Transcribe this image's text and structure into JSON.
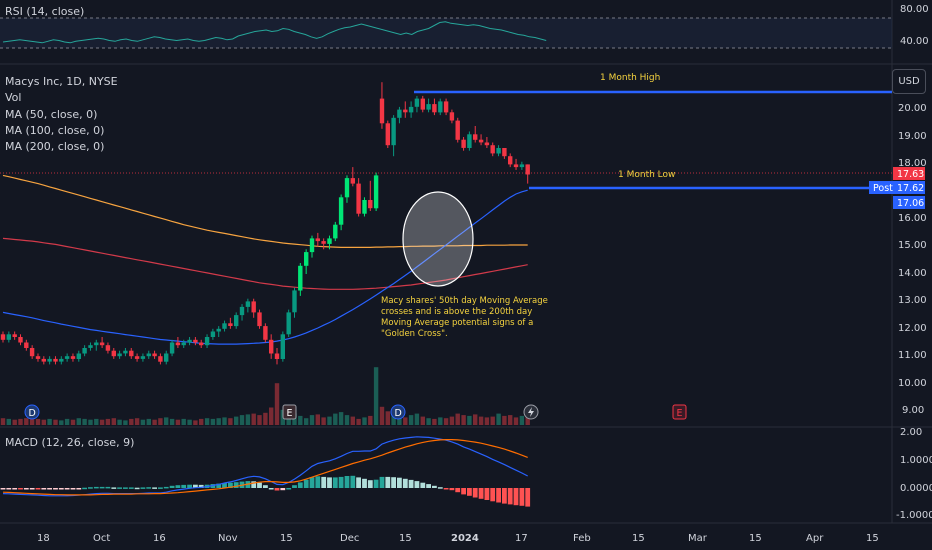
{
  "rsi": {
    "label": "RSI (14, close)",
    "ticks": [
      "80.00",
      "40.00"
    ],
    "values": [
      48,
      49,
      50,
      51,
      50,
      49,
      48,
      47,
      49,
      51,
      50,
      48,
      47,
      49,
      50,
      51,
      52,
      53,
      52,
      50,
      49,
      51,
      52,
      50,
      49,
      51,
      53,
      55,
      54,
      52,
      51,
      50,
      51,
      52,
      50,
      49,
      50,
      52,
      54,
      53,
      51,
      52,
      56,
      58,
      60,
      62,
      63,
      64,
      62,
      63,
      66,
      65,
      62,
      60,
      58,
      55,
      53,
      55,
      59,
      62,
      65,
      67,
      68,
      70,
      72,
      70,
      68,
      66,
      64,
      62,
      60,
      58,
      60,
      58,
      62,
      64,
      66,
      70,
      74,
      75,
      73,
      72,
      71,
      70,
      71,
      70,
      68,
      66,
      65,
      64,
      62,
      60,
      58,
      57,
      55,
      54,
      52,
      50
    ]
  },
  "main": {
    "legend": {
      "title": "Macys Inc, 1D, NYSE",
      "vol": "Vol",
      "ma50": "MA (50, close, 0)",
      "ma100": "MA (100, close, 0)",
      "ma200": "MA (200, close, 0)"
    },
    "usd_label": "USD",
    "price_ticks": [
      "20.00",
      "19.00",
      "18.00",
      "16.00",
      "15.00",
      "14.00",
      "13.00",
      "12.00",
      "11.00",
      "10.00",
      "9.00"
    ],
    "one_month_high_label": "1 Month High",
    "one_month_low_label": "1 Month Low",
    "annotation_lines": [
      "Macy shares' 50th day Moving Average",
      "crosses and is above the 200th day",
      "Moving Average potential signs of a",
      "\"Golden Cross\"."
    ],
    "badges": {
      "last_price": "17.63",
      "post_label": "Post",
      "post_price": "17.62",
      "ma_price": "17.06"
    },
    "event_markers": [
      "D",
      "E",
      "D",
      "E"
    ]
  },
  "macd": {
    "label": "MACD (12, 26, close, 9)",
    "ticks": [
      "2.00",
      "1.0000",
      "0.0000",
      "-1.0000"
    ]
  },
  "time_axis": [
    "18",
    "Oct",
    "16",
    "Nov",
    "15",
    "Dec",
    "15",
    "2024",
    "17",
    "Feb",
    "15",
    "Mar",
    "15",
    "Apr",
    "15"
  ],
  "colors": {
    "up": "#089981",
    "up_bright": "#00e676",
    "down": "#f23645",
    "ma50": "#2962ff",
    "ma100": "#f7a440",
    "ma200": "#d23a4a",
    "level_line": "#2962ff",
    "annotation": "#f5d33f",
    "rsi_line": "#26a69a",
    "macd_line": "#2962ff",
    "signal_line": "#ff6d00"
  },
  "chart_data": {
    "type": "candlestick",
    "title": "Macys Inc, 1D, NYSE",
    "ylim": [
      8.8,
      21.2
    ],
    "dates": [
      "2023-09-12",
      "2023-09-13",
      "2023-09-14",
      "2023-09-15",
      "2023-09-18",
      "2023-09-19",
      "2023-09-20",
      "2023-09-21",
      "2023-09-22",
      "2023-09-25",
      "2023-09-26",
      "2023-09-27",
      "2023-09-28",
      "2023-09-29",
      "2023-10-02",
      "2023-10-03",
      "2023-10-04",
      "2023-10-05",
      "2023-10-06",
      "2023-10-09",
      "2023-10-10",
      "2023-10-11",
      "2023-10-12",
      "2023-10-13",
      "2023-10-16",
      "2023-10-17",
      "2023-10-18",
      "2023-10-19",
      "2023-10-20",
      "2023-10-23",
      "2023-10-24",
      "2023-10-25",
      "2023-10-26",
      "2023-10-27",
      "2023-10-30",
      "2023-10-31",
      "2023-11-01",
      "2023-11-02",
      "2023-11-03",
      "2023-11-06",
      "2023-11-07",
      "2023-11-08",
      "2023-11-09",
      "2023-11-10",
      "2023-11-13",
      "2023-11-14",
      "2023-11-15",
      "2023-11-16",
      "2023-11-17",
      "2023-11-20",
      "2023-11-21",
      "2023-11-22",
      "2023-11-24",
      "2023-11-27",
      "2023-11-28",
      "2023-11-29",
      "2023-11-30",
      "2023-12-01",
      "2023-12-04",
      "2023-12-05",
      "2023-12-06",
      "2023-12-07",
      "2023-12-08",
      "2023-12-11",
      "2023-12-12",
      "2023-12-13",
      "2023-12-14",
      "2023-12-15",
      "2023-12-18",
      "2023-12-19",
      "2023-12-20",
      "2023-12-21",
      "2023-12-22",
      "2023-12-26",
      "2023-12-27",
      "2023-12-28",
      "2023-12-29",
      "2024-01-02",
      "2024-01-03",
      "2024-01-04",
      "2024-01-05",
      "2024-01-08",
      "2024-01-09",
      "2024-01-10",
      "2024-01-11",
      "2024-01-12",
      "2024-01-16",
      "2024-01-17",
      "2024-01-18",
      "2024-01-19",
      "2024-01-22"
    ],
    "candles": [
      [
        11.8,
        11.9,
        11.5,
        11.6
      ],
      [
        11.6,
        11.9,
        11.5,
        11.8
      ],
      [
        11.8,
        11.9,
        11.6,
        11.7
      ],
      [
        11.7,
        11.8,
        11.4,
        11.5
      ],
      [
        11.5,
        11.6,
        11.2,
        11.3
      ],
      [
        11.3,
        11.4,
        10.9,
        11.0
      ],
      [
        11.0,
        11.1,
        10.8,
        10.9
      ],
      [
        10.9,
        11.0,
        10.7,
        10.8
      ],
      [
        10.8,
        11.0,
        10.7,
        10.9
      ],
      [
        10.9,
        11.0,
        10.7,
        10.8
      ],
      [
        10.8,
        11.0,
        10.7,
        10.9
      ],
      [
        10.9,
        11.1,
        10.8,
        11.0
      ],
      [
        11.0,
        11.1,
        10.8,
        10.9
      ],
      [
        10.9,
        11.2,
        10.8,
        11.1
      ],
      [
        11.1,
        11.4,
        11.0,
        11.3
      ],
      [
        11.3,
        11.5,
        11.2,
        11.4
      ],
      [
        11.4,
        11.6,
        11.2,
        11.5
      ],
      [
        11.5,
        11.7,
        11.3,
        11.4
      ],
      [
        11.4,
        11.5,
        11.1,
        11.2
      ],
      [
        11.2,
        11.3,
        10.9,
        11.0
      ],
      [
        11.0,
        11.2,
        10.9,
        11.1
      ],
      [
        11.1,
        11.3,
        11.0,
        11.2
      ],
      [
        11.2,
        11.3,
        10.9,
        11.0
      ],
      [
        11.0,
        11.1,
        10.8,
        10.9
      ],
      [
        10.9,
        11.1,
        10.8,
        11.0
      ],
      [
        11.0,
        11.2,
        10.9,
        11.1
      ],
      [
        11.1,
        11.2,
        10.9,
        11.0
      ],
      [
        11.0,
        11.1,
        10.7,
        10.8
      ],
      [
        10.8,
        11.2,
        10.7,
        11.1
      ],
      [
        11.1,
        11.6,
        11.0,
        11.5
      ],
      [
        11.5,
        11.7,
        11.3,
        11.4
      ],
      [
        11.4,
        11.6,
        11.3,
        11.5
      ],
      [
        11.5,
        11.7,
        11.4,
        11.6
      ],
      [
        11.6,
        11.7,
        11.4,
        11.5
      ],
      [
        11.5,
        11.6,
        11.3,
        11.4
      ],
      [
        11.4,
        11.8,
        11.3,
        11.7
      ],
      [
        11.7,
        12.0,
        11.6,
        11.9
      ],
      [
        11.9,
        12.1,
        11.7,
        12.0
      ],
      [
        12.0,
        12.3,
        11.9,
        12.2
      ],
      [
        12.2,
        12.4,
        12.0,
        12.1
      ],
      [
        12.1,
        12.6,
        12.0,
        12.5
      ],
      [
        12.5,
        12.9,
        12.3,
        12.8
      ],
      [
        12.8,
        13.1,
        12.6,
        13.0
      ],
      [
        13.0,
        13.1,
        12.4,
        12.6
      ],
      [
        12.6,
        12.7,
        12.0,
        12.1
      ],
      [
        12.1,
        12.2,
        11.5,
        11.6
      ],
      [
        11.6,
        11.8,
        10.9,
        11.1
      ],
      [
        11.1,
        11.3,
        10.7,
        10.9
      ],
      [
        10.9,
        11.9,
        10.8,
        11.8
      ],
      [
        11.8,
        12.7,
        11.7,
        12.6
      ],
      [
        12.6,
        13.5,
        12.4,
        13.4
      ],
      [
        13.4,
        14.4,
        13.2,
        14.3
      ],
      [
        14.3,
        14.9,
        14.0,
        14.8
      ],
      [
        14.8,
        15.4,
        14.6,
        15.3
      ],
      [
        15.3,
        15.5,
        15.0,
        15.2
      ],
      [
        15.2,
        15.3,
        14.9,
        15.1
      ],
      [
        15.1,
        15.4,
        14.9,
        15.3
      ],
      [
        15.3,
        15.9,
        15.2,
        15.8
      ],
      [
        15.8,
        16.9,
        15.6,
        16.8
      ],
      [
        16.8,
        17.6,
        16.6,
        17.5
      ],
      [
        17.5,
        17.9,
        17.2,
        17.3
      ],
      [
        17.3,
        17.5,
        16.1,
        16.2
      ],
      [
        16.2,
        16.8,
        16.1,
        16.7
      ],
      [
        16.7,
        17.4,
        16.3,
        16.4
      ],
      [
        16.4,
        17.7,
        16.3,
        17.6
      ],
      [
        20.4,
        21.0,
        19.3,
        19.5
      ],
      [
        19.5,
        19.6,
        18.6,
        18.7
      ],
      [
        18.7,
        19.8,
        18.3,
        19.7
      ],
      [
        19.7,
        20.1,
        19.5,
        20.0
      ],
      [
        20.0,
        20.3,
        19.7,
        19.9
      ],
      [
        19.9,
        20.3,
        19.7,
        20.1
      ],
      [
        20.1,
        20.5,
        19.9,
        20.4
      ],
      [
        20.4,
        20.5,
        19.9,
        20.0
      ],
      [
        20.0,
        20.4,
        19.9,
        20.2
      ],
      [
        20.2,
        20.4,
        19.8,
        19.9
      ],
      [
        19.9,
        20.4,
        19.8,
        20.3
      ],
      [
        20.3,
        20.4,
        19.8,
        19.9
      ],
      [
        19.9,
        20.0,
        19.5,
        19.6
      ],
      [
        19.6,
        19.7,
        18.8,
        18.9
      ],
      [
        18.9,
        19.0,
        18.5,
        18.6
      ],
      [
        18.6,
        19.2,
        18.5,
        19.1
      ],
      [
        19.1,
        19.4,
        18.8,
        18.9
      ],
      [
        18.9,
        19.1,
        18.7,
        18.8
      ],
      [
        18.8,
        19.0,
        18.6,
        18.7
      ],
      [
        18.7,
        18.8,
        18.3,
        18.4
      ],
      [
        18.4,
        18.7,
        18.3,
        18.6
      ],
      [
        18.6,
        18.6,
        18.2,
        18.3
      ],
      [
        18.3,
        18.4,
        17.9,
        18.0
      ],
      [
        18.0,
        18.2,
        17.8,
        17.9
      ],
      [
        17.9,
        18.1,
        17.8,
        18.0
      ],
      [
        18.0,
        18.0,
        17.3,
        17.63
      ]
    ],
    "volume": [
      0.9,
      0.8,
      0.7,
      0.8,
      0.9,
      1.0,
      0.8,
      0.7,
      0.8,
      0.7,
      0.6,
      0.8,
      0.7,
      0.9,
      0.8,
      0.7,
      0.8,
      0.7,
      0.8,
      0.9,
      0.7,
      0.6,
      0.8,
      0.9,
      0.7,
      0.8,
      0.7,
      0.9,
      1.0,
      0.8,
      0.7,
      0.8,
      0.7,
      0.6,
      0.8,
      0.9,
      0.8,
      0.9,
      1.0,
      0.9,
      1.1,
      1.3,
      1.4,
      1.5,
      1.3,
      1.6,
      2.3,
      5.5,
      2.0,
      1.6,
      1.5,
      1.2,
      0.9,
      1.3,
      1.4,
      1.0,
      1.1,
      1.5,
      1.7,
      1.3,
      1.1,
      0.8,
      1.0,
      1.2,
      7.6,
      2.4,
      1.8,
      1.5,
      1.2,
      1.0,
      1.3,
      1.5,
      1.1,
      0.9,
      0.8,
      1.0,
      0.9,
      1.1,
      1.5,
      1.3,
      1.2,
      1.4,
      1.1,
      1.0,
      1.1,
      1.5,
      1.2,
      1.3,
      1.0,
      1.2,
      1.4
    ],
    "ma50": [
      12.6,
      12.56,
      12.52,
      12.48,
      12.44,
      12.4,
      12.35,
      12.3,
      12.26,
      12.22,
      12.17,
      12.13,
      12.09,
      12.05,
      12.01,
      11.97,
      11.94,
      11.91,
      11.88,
      11.85,
      11.82,
      11.79,
      11.76,
      11.73,
      11.7,
      11.67,
      11.64,
      11.61,
      11.59,
      11.57,
      11.55,
      11.53,
      11.51,
      11.49,
      11.47,
      11.46,
      11.45,
      11.44,
      11.44,
      11.44,
      11.44,
      11.45,
      11.46,
      11.47,
      11.48,
      11.5,
      11.52,
      11.55,
      11.59,
      11.64,
      11.7,
      11.77,
      11.85,
      11.94,
      12.03,
      12.13,
      12.23,
      12.34,
      12.46,
      12.58,
      12.7,
      12.83,
      12.96,
      13.09,
      13.23,
      13.37,
      13.51,
      13.65,
      13.8,
      13.95,
      14.1,
      14.26,
      14.42,
      14.58,
      14.74,
      14.9,
      15.06,
      15.22,
      15.38,
      15.54,
      15.7,
      15.86,
      16.02,
      16.18,
      16.34,
      16.5,
      16.66,
      16.8,
      16.92,
      17.0,
      17.06
    ],
    "ma100": [
      17.6,
      17.55,
      17.5,
      17.45,
      17.4,
      17.35,
      17.3,
      17.24,
      17.18,
      17.12,
      17.06,
      17.0,
      16.94,
      16.88,
      16.82,
      16.76,
      16.7,
      16.64,
      16.58,
      16.52,
      16.46,
      16.4,
      16.34,
      16.28,
      16.22,
      16.16,
      16.1,
      16.04,
      15.98,
      15.92,
      15.86,
      15.8,
      15.75,
      15.7,
      15.65,
      15.6,
      15.56,
      15.52,
      15.48,
      15.44,
      15.4,
      15.36,
      15.32,
      15.28,
      15.25,
      15.22,
      15.19,
      15.16,
      15.13,
      15.11,
      15.09,
      15.07,
      15.05,
      15.03,
      15.01,
      15.0,
      14.99,
      14.98,
      14.97,
      14.97,
      14.97,
      14.97,
      14.97,
      14.97,
      14.98,
      14.98,
      14.99,
      14.99,
      15.0,
      15.0,
      15.01,
      15.01,
      15.02,
      15.02,
      15.02,
      15.03,
      15.03,
      15.03,
      15.03,
      15.04,
      15.04,
      15.04,
      15.04,
      15.05,
      15.05,
      15.05,
      15.05,
      15.06,
      15.06,
      15.06,
      15.06
    ],
    "ma200": [
      15.3,
      15.28,
      15.26,
      15.24,
      15.22,
      15.2,
      15.17,
      15.14,
      15.11,
      15.08,
      15.04,
      15.0,
      14.96,
      14.92,
      14.88,
      14.84,
      14.8,
      14.76,
      14.72,
      14.68,
      14.64,
      14.6,
      14.56,
      14.52,
      14.48,
      14.44,
      14.4,
      14.36,
      14.32,
      14.28,
      14.24,
      14.2,
      14.16,
      14.12,
      14.08,
      14.04,
      14.0,
      13.96,
      13.92,
      13.88,
      13.84,
      13.8,
      13.76,
      13.72,
      13.68,
      13.65,
      13.62,
      13.59,
      13.56,
      13.54,
      13.52,
      13.5,
      13.48,
      13.47,
      13.46,
      13.45,
      13.44,
      13.44,
      13.44,
      13.44,
      13.44,
      13.45,
      13.46,
      13.47,
      13.48,
      13.5,
      13.52,
      13.54,
      13.56,
      13.58,
      13.6,
      13.63,
      13.66,
      13.69,
      13.72,
      13.75,
      13.78,
      13.82,
      13.86,
      13.9,
      13.94,
      13.98,
      14.02,
      14.06,
      14.1,
      14.14,
      14.18,
      14.22,
      14.26,
      14.3,
      14.34
    ],
    "macd": [
      -0.2,
      -0.21,
      -0.22,
      -0.23,
      -0.24,
      -0.25,
      -0.26,
      -0.27,
      -0.28,
      -0.28,
      -0.28,
      -0.28,
      -0.27,
      -0.26,
      -0.24,
      -0.22,
      -0.2,
      -0.19,
      -0.19,
      -0.2,
      -0.2,
      -0.2,
      -0.2,
      -0.2,
      -0.19,
      -0.18,
      -0.18,
      -0.18,
      -0.15,
      -0.1,
      -0.07,
      -0.04,
      -0.01,
      0.01,
      0.02,
      0.05,
      0.09,
      0.13,
      0.18,
      0.22,
      0.27,
      0.33,
      0.39,
      0.42,
      0.4,
      0.33,
      0.23,
      0.13,
      0.12,
      0.2,
      0.32,
      0.46,
      0.62,
      0.78,
      0.88,
      0.93,
      0.98,
      1.05,
      1.14,
      1.24,
      1.32,
      1.32,
      1.33,
      1.33,
      1.41,
      1.58,
      1.66,
      1.72,
      1.77,
      1.8,
      1.82,
      1.84,
      1.83,
      1.82,
      1.79,
      1.76,
      1.72,
      1.66,
      1.58,
      1.48,
      1.4,
      1.31,
      1.22,
      1.13,
      1.03,
      0.94,
      0.84,
      0.74,
      0.64,
      0.54,
      0.43
    ],
    "signal": [
      -0.15,
      -0.16,
      -0.17,
      -0.18,
      -0.19,
      -0.2,
      -0.21,
      -0.22,
      -0.23,
      -0.24,
      -0.24,
      -0.25,
      -0.25,
      -0.25,
      -0.25,
      -0.25,
      -0.24,
      -0.23,
      -0.23,
      -0.22,
      -0.22,
      -0.22,
      -0.22,
      -0.21,
      -0.21,
      -0.21,
      -0.2,
      -0.2,
      -0.19,
      -0.18,
      -0.17,
      -0.15,
      -0.13,
      -0.11,
      -0.09,
      -0.07,
      -0.05,
      -0.03,
      0.0,
      0.03,
      0.06,
      0.1,
      0.14,
      0.18,
      0.21,
      0.23,
      0.23,
      0.22,
      0.2,
      0.2,
      0.22,
      0.26,
      0.32,
      0.39,
      0.46,
      0.53,
      0.6,
      0.67,
      0.74,
      0.81,
      0.88,
      0.94,
      1.0,
      1.05,
      1.11,
      1.18,
      1.26,
      1.33,
      1.4,
      1.47,
      1.53,
      1.59,
      1.64,
      1.68,
      1.71,
      1.73,
      1.74,
      1.74,
      1.73,
      1.71,
      1.68,
      1.65,
      1.61,
      1.56,
      1.51,
      1.46,
      1.4,
      1.33,
      1.26,
      1.18,
      1.1
    ],
    "one_month_high": 20.4,
    "one_month_low": 17.06
  }
}
